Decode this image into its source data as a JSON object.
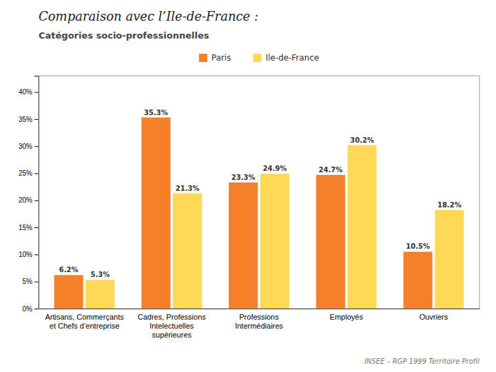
{
  "chart_data": {
    "type": "bar",
    "title": "Comparaison avec l’Ile-de-France :",
    "subtitle": "Catégories socio-professionnelles",
    "categories": [
      "Artisans, Commerçants\net Chefs d’entreprise",
      "Cadres, Professions\nIntelectuelles\nsupérieures",
      "Professions\nIntermédiaires",
      "Employés",
      "Ouvriers"
    ],
    "series": [
      {
        "name": "Paris",
        "color": "#F4802A",
        "values": [
          6.2,
          35.3,
          23.3,
          24.7,
          10.5
        ],
        "value_labels": [
          "6.2%",
          "35.3%",
          "23.3%",
          "24.7%",
          "10.5%"
        ]
      },
      {
        "name": "Ile-de-France",
        "color": "#FFD855",
        "values": [
          5.3,
          21.3,
          24.9,
          30.2,
          18.2
        ],
        "value_labels": [
          "5.3%",
          "21.3%",
          "24.9%",
          "30.2%",
          "18.2%"
        ]
      }
    ],
    "ylim": [
      0,
      43
    ],
    "yticks": [
      {
        "value": 0,
        "label": "0%"
      },
      {
        "value": 5,
        "label": "5%"
      },
      {
        "value": 10,
        "label": "10%"
      },
      {
        "value": 15,
        "label": "15%"
      },
      {
        "value": 20,
        "label": "20%"
      },
      {
        "value": 25,
        "label": "25%"
      },
      {
        "value": 30,
        "label": "30%"
      },
      {
        "value": 35,
        "label": "35%"
      },
      {
        "value": 40,
        "label": "40%"
      }
    ],
    "grid": false,
    "legend": "top",
    "annotations": [
      "INSEE – RGP 1999 Territoire Profil"
    ]
  }
}
